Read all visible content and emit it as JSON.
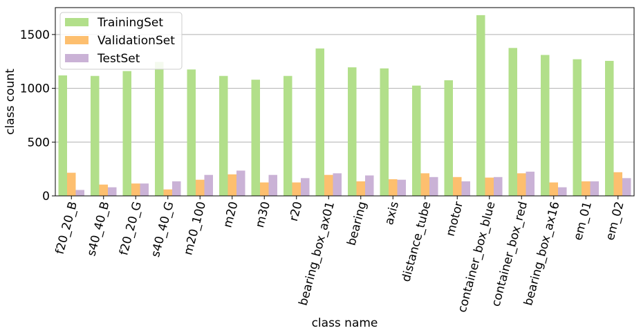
{
  "chart_data": {
    "type": "bar",
    "xlabel": "class name",
    "ylabel": "class count",
    "ylim": [
      0,
      1750
    ],
    "yticks": [
      0,
      500,
      1000,
      1500
    ],
    "grid": "horizontal",
    "legend_position": "top-left",
    "categories": [
      "f20_20_B",
      "s40_40_B",
      "f20_20_G",
      "s40_40_G",
      "m20_100",
      "m20",
      "m30",
      "r20",
      "bearing_box_ax01",
      "bearing",
      "axis",
      "distance_tube",
      "motor",
      "container_box_blue",
      "container_box_red",
      "bearing_box_ax16",
      "em_01",
      "em_02"
    ],
    "series": [
      {
        "name": "TrainingSet",
        "color": "#b2df8a",
        "values": [
          1120,
          1115,
          1160,
          1245,
          1175,
          1115,
          1080,
          1115,
          1370,
          1195,
          1185,
          1025,
          1075,
          1680,
          1375,
          1310,
          1270,
          1255
        ]
      },
      {
        "name": "ValidationSet",
        "color": "#fdbf6f",
        "values": [
          215,
          105,
          115,
          60,
          150,
          200,
          125,
          125,
          195,
          135,
          155,
          210,
          175,
          170,
          210,
          125,
          135,
          220
        ]
      },
      {
        "name": "TestSet",
        "color": "#cab2d6",
        "values": [
          55,
          80,
          115,
          135,
          195,
          235,
          195,
          165,
          210,
          190,
          150,
          175,
          135,
          175,
          225,
          80,
          135,
          165
        ]
      }
    ]
  }
}
